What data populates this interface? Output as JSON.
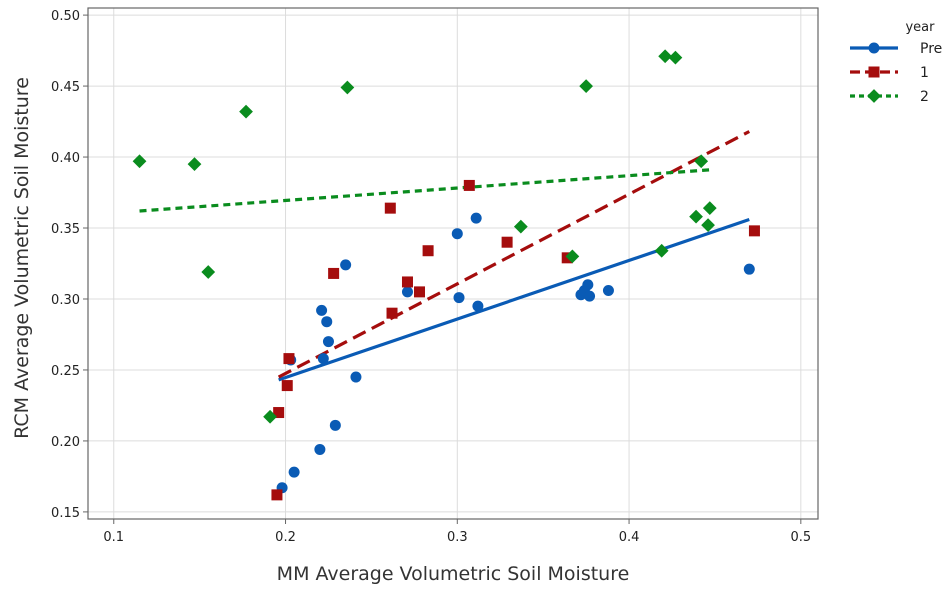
{
  "chart_data": {
    "type": "scatter",
    "xlabel": "MM Average Volumetric Soil Moisture",
    "ylabel": "RCM Average Volumetric Soil Moisture",
    "xlim": [
      0.085,
      0.51
    ],
    "ylim": [
      0.145,
      0.505
    ],
    "x_ticks": [
      0.1,
      0.2,
      0.3,
      0.4,
      0.5
    ],
    "x_tick_labels": [
      "0.1",
      "0.2",
      "0.3",
      "0.4",
      "0.5"
    ],
    "y_ticks": [
      0.15,
      0.2,
      0.25,
      0.3,
      0.35,
      0.4,
      0.45,
      0.5
    ],
    "y_tick_labels": [
      "0.15",
      "0.20",
      "0.25",
      "0.30",
      "0.35",
      "0.40",
      "0.45",
      "0.50"
    ],
    "grid": true,
    "legend": {
      "title": "year",
      "placement": "right"
    },
    "series": [
      {
        "name": "Pre",
        "color": "#0a5bb5",
        "marker": "circle",
        "line_style": "solid",
        "fit_line": {
          "x": [
            0.196,
            0.47
          ],
          "y": [
            0.243,
            0.356
          ]
        },
        "points": [
          [
            0.198,
            0.167
          ],
          [
            0.203,
            0.257
          ],
          [
            0.205,
            0.178
          ],
          [
            0.22,
            0.194
          ],
          [
            0.221,
            0.292
          ],
          [
            0.222,
            0.258
          ],
          [
            0.224,
            0.284
          ],
          [
            0.225,
            0.27
          ],
          [
            0.229,
            0.211
          ],
          [
            0.235,
            0.324
          ],
          [
            0.241,
            0.245
          ],
          [
            0.271,
            0.305
          ],
          [
            0.3,
            0.346
          ],
          [
            0.301,
            0.301
          ],
          [
            0.311,
            0.357
          ],
          [
            0.312,
            0.295
          ],
          [
            0.372,
            0.303
          ],
          [
            0.374,
            0.306
          ],
          [
            0.376,
            0.31
          ],
          [
            0.377,
            0.302
          ],
          [
            0.388,
            0.306
          ],
          [
            0.47,
            0.321
          ]
        ]
      },
      {
        "name": "1",
        "color": "#a50d0d",
        "marker": "square",
        "line_style": "dashed",
        "fit_line": {
          "x": [
            0.196,
            0.47
          ],
          "y": [
            0.245,
            0.418
          ]
        },
        "points": [
          [
            0.195,
            0.162
          ],
          [
            0.196,
            0.22
          ],
          [
            0.201,
            0.239
          ],
          [
            0.202,
            0.258
          ],
          [
            0.228,
            0.318
          ],
          [
            0.261,
            0.364
          ],
          [
            0.262,
            0.29
          ],
          [
            0.271,
            0.312
          ],
          [
            0.278,
            0.305
          ],
          [
            0.283,
            0.334
          ],
          [
            0.307,
            0.38
          ],
          [
            0.329,
            0.34
          ],
          [
            0.364,
            0.329
          ],
          [
            0.473,
            0.348
          ]
        ]
      },
      {
        "name": "2",
        "color": "#0a8c1e",
        "marker": "diamond",
        "line_style": "dotted",
        "fit_line": {
          "x": [
            0.115,
            0.447
          ],
          "y": [
            0.362,
            0.391
          ]
        },
        "points": [
          [
            0.115,
            0.397
          ],
          [
            0.147,
            0.395
          ],
          [
            0.155,
            0.319
          ],
          [
            0.177,
            0.432
          ],
          [
            0.191,
            0.217
          ],
          [
            0.236,
            0.449
          ],
          [
            0.337,
            0.351
          ],
          [
            0.367,
            0.33
          ],
          [
            0.375,
            0.45
          ],
          [
            0.419,
            0.334
          ],
          [
            0.421,
            0.471
          ],
          [
            0.427,
            0.47
          ],
          [
            0.439,
            0.358
          ],
          [
            0.442,
            0.397
          ],
          [
            0.446,
            0.352
          ],
          [
            0.447,
            0.364
          ]
        ]
      }
    ]
  }
}
